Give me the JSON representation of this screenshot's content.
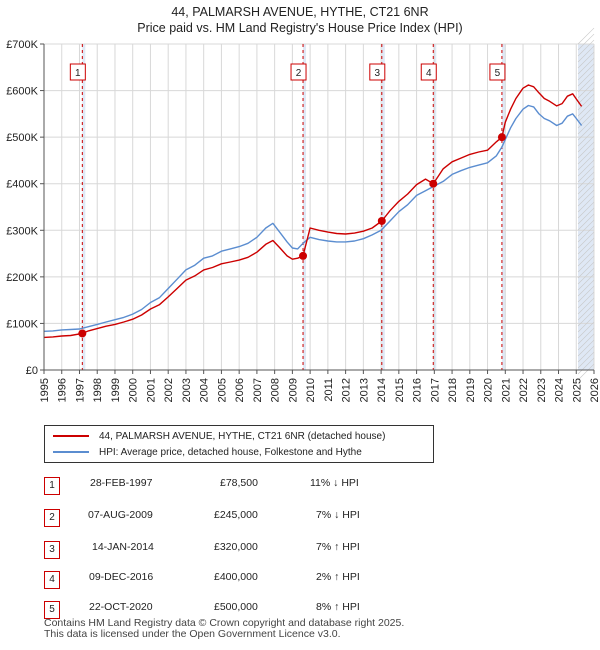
{
  "title": {
    "line1": "44, PALMARSH AVENUE, HYTHE, CT21 6NR",
    "line2": "Price paid vs. HM Land Registry's House Price Index (HPI)"
  },
  "legend": {
    "property_label": "44, PALMARSH AVENUE, HYTHE, CT21 6NR (detached house)",
    "hpi_label": "HPI: Average price, detached house, Folkestone and Hythe"
  },
  "sales": [
    {
      "num": "1",
      "date": "28-FEB-1997",
      "price": "£78,500",
      "hpi": "11% ↓ HPI"
    },
    {
      "num": "2",
      "date": "07-AUG-2009",
      "price": "£245,000",
      "hpi": "7% ↓ HPI"
    },
    {
      "num": "3",
      "date": "14-JAN-2014",
      "price": "£320,000",
      "hpi": "7% ↑ HPI"
    },
    {
      "num": "4",
      "date": "09-DEC-2016",
      "price": "£400,000",
      "hpi": "2% ↑ HPI"
    },
    {
      "num": "5",
      "date": "22-OCT-2020",
      "price": "£500,000",
      "hpi": "8% ↑ HPI"
    }
  ],
  "footer": {
    "line1": "Contains HM Land Registry data © Crown copyright and database right 2025.",
    "line2": "This data is licensed under the Open Government Licence v3.0."
  },
  "colors": {
    "property": "#cc0000",
    "hpi": "#5b8dd0",
    "grid": "#d8d8d8",
    "highlight": "#dfe8f5"
  },
  "chart_data": {
    "type": "line",
    "xlabel": "",
    "ylabel": "",
    "xlim": [
      1995,
      2026
    ],
    "ylim": [
      0,
      700000
    ],
    "x_ticks": [
      "1995",
      "1996",
      "1997",
      "1998",
      "1999",
      "2000",
      "2001",
      "2002",
      "2003",
      "2004",
      "2005",
      "2006",
      "2007",
      "2008",
      "2009",
      "2010",
      "2011",
      "2012",
      "2013",
      "2014",
      "2015",
      "2016",
      "2017",
      "2018",
      "2019",
      "2020",
      "2021",
      "2022",
      "2023",
      "2024",
      "2025",
      "2026"
    ],
    "y_ticks": [
      {
        "value": 0,
        "label": "£0"
      },
      {
        "value": 100000,
        "label": "£100K"
      },
      {
        "value": 200000,
        "label": "£200K"
      },
      {
        "value": 300000,
        "label": "£300K"
      },
      {
        "value": 400000,
        "label": "£400K"
      },
      {
        "value": 500000,
        "label": "£500K"
      },
      {
        "value": 600000,
        "label": "£600K"
      },
      {
        "value": 700000,
        "label": "£700K"
      }
    ],
    "future_from": 2025.1,
    "series": [
      {
        "name": "HPI: Average price, detached house, Folkestone and Hythe",
        "x": [
          1995.0,
          1995.5,
          1996.0,
          1996.5,
          1997.0,
          1997.5,
          1998.0,
          1998.5,
          1999.0,
          1999.5,
          2000.0,
          2000.5,
          2001.0,
          2001.5,
          2002.0,
          2002.5,
          2003.0,
          2003.5,
          2004.0,
          2004.5,
          2005.0,
          2005.5,
          2006.0,
          2006.5,
          2007.0,
          2007.5,
          2007.9,
          2008.3,
          2008.7,
          2009.0,
          2009.3,
          2009.6,
          2010.0,
          2010.5,
          2011.0,
          2011.5,
          2012.0,
          2012.5,
          2013.0,
          2013.5,
          2014.0,
          2014.5,
          2015.0,
          2015.5,
          2016.0,
          2016.5,
          2017.0,
          2017.5,
          2018.0,
          2018.5,
          2019.0,
          2019.5,
          2020.0,
          2020.5,
          2020.8,
          2021.0,
          2021.3,
          2021.6,
          2022.0,
          2022.3,
          2022.6,
          2022.9,
          2023.2,
          2023.5,
          2023.9,
          2024.2,
          2024.5,
          2024.8,
          2025.0,
          2025.3
        ],
        "values": [
          83000,
          84000,
          86000,
          87000,
          88000,
          93000,
          98000,
          103000,
          108000,
          113000,
          120000,
          130000,
          145000,
          155000,
          175000,
          195000,
          215000,
          225000,
          240000,
          245000,
          255000,
          260000,
          265000,
          272000,
          285000,
          305000,
          315000,
          295000,
          275000,
          262000,
          260000,
          272000,
          285000,
          280000,
          277000,
          275000,
          275000,
          277000,
          282000,
          290000,
          300000,
          320000,
          340000,
          355000,
          375000,
          385000,
          395000,
          405000,
          420000,
          428000,
          435000,
          440000,
          445000,
          460000,
          478000,
          495000,
          520000,
          540000,
          560000,
          568000,
          565000,
          550000,
          540000,
          535000,
          525000,
          530000,
          545000,
          550000,
          540000,
          525000
        ]
      },
      {
        "name": "44, PALMARSH AVENUE, HYTHE, CT21 6NR (detached house)",
        "x": [
          1995.0,
          1995.5,
          1996.0,
          1996.5,
          1997.16,
          1997.5,
          1998.0,
          1998.5,
          1999.0,
          1999.5,
          2000.0,
          2000.5,
          2001.0,
          2001.5,
          2002.0,
          2002.5,
          2003.0,
          2003.5,
          2004.0,
          2004.5,
          2005.0,
          2005.5,
          2006.0,
          2006.5,
          2007.0,
          2007.5,
          2007.9,
          2008.3,
          2008.7,
          2009.0,
          2009.3,
          2009.6,
          2010.0,
          2010.5,
          2011.0,
          2011.5,
          2012.0,
          2012.5,
          2013.0,
          2013.5,
          2014.04,
          2014.5,
          2015.0,
          2015.5,
          2016.0,
          2016.5,
          2016.94,
          2017.5,
          2018.0,
          2018.5,
          2019.0,
          2019.5,
          2020.0,
          2020.5,
          2020.81,
          2021.0,
          2021.3,
          2021.6,
          2022.0,
          2022.3,
          2022.6,
          2022.9,
          2023.2,
          2023.5,
          2023.9,
          2024.2,
          2024.5,
          2024.8,
          2025.0,
          2025.3
        ],
        "values": [
          70000,
          71000,
          73000,
          74000,
          78500,
          84000,
          89000,
          94000,
          98000,
          103000,
          109000,
          118000,
          131000,
          140000,
          157000,
          175000,
          193000,
          202000,
          215000,
          220000,
          228000,
          232000,
          236000,
          242000,
          253000,
          270000,
          278000,
          262000,
          245000,
          238000,
          240000,
          245000,
          305000,
          300000,
          296000,
          293000,
          292000,
          294000,
          298000,
          305000,
          320000,
          342000,
          362000,
          378000,
          398000,
          410000,
          400000,
          432000,
          447000,
          455000,
          463000,
          468000,
          472000,
          490000,
          500000,
          532000,
          560000,
          583000,
          605000,
          612000,
          608000,
          595000,
          583000,
          577000,
          567000,
          572000,
          588000,
          593000,
          582000,
          566000
        ]
      }
    ],
    "sales_markers": [
      {
        "label": "1",
        "x": 1997.16,
        "value": 78500
      },
      {
        "label": "2",
        "x": 2009.6,
        "value": 245000
      },
      {
        "label": "3",
        "x": 2014.04,
        "value": 320000
      },
      {
        "label": "4",
        "x": 2016.94,
        "value": 400000
      },
      {
        "label": "5",
        "x": 2020.81,
        "value": 500000
      }
    ]
  }
}
